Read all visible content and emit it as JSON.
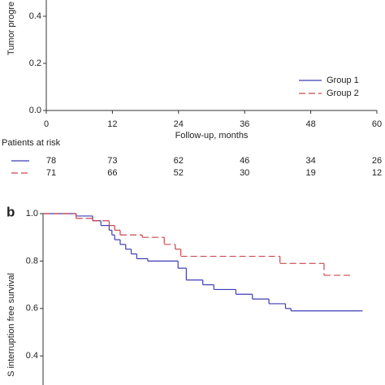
{
  "chart_data": [
    {
      "type": "line",
      "y_label": "Tumor progre",
      "x_label": "Follow-up, months",
      "xlim": [
        0,
        60
      ],
      "xticks": [
        0,
        12,
        24,
        36,
        48,
        60
      ],
      "ylim": [
        0,
        1
      ],
      "yticks": [
        {
          "value": 0,
          "label": "0.0"
        },
        {
          "value": 0.2,
          "label": "0.2"
        },
        {
          "value": 0.4,
          "label": "0.4"
        }
      ],
      "legend": "lower right",
      "at_risk_title": "Patients at risk",
      "series": [
        {
          "name": "Group 1",
          "color": "#3c3cb4",
          "dash": false,
          "x": [],
          "values": [],
          "at_risk": [
            78,
            73,
            62,
            46,
            34,
            26
          ]
        },
        {
          "name": "Group 2",
          "color": "#c8474e",
          "dash": true,
          "x": [],
          "values": [],
          "at_risk": [
            71,
            66,
            52,
            30,
            19,
            12
          ]
        }
      ]
    },
    {
      "type": "step",
      "panel": "b",
      "y_label": "S interruption free survival",
      "xlim": [
        0,
        60
      ],
      "ylim": [
        0,
        1
      ],
      "yticks": [
        {
          "value": 0.4,
          "label": "0.4"
        },
        {
          "value": 0.6,
          "label": "0.6"
        },
        {
          "value": 0.8,
          "label": "0.8"
        },
        {
          "value": 1,
          "label": "1.0"
        }
      ],
      "series": [
        {
          "name": "Group 1",
          "color": "#3c3cb4",
          "dash": false,
          "x": [
            0,
            6,
            9,
            10.5,
            12,
            12.5,
            13,
            14,
            15,
            16,
            17,
            19,
            24.5,
            26,
            29,
            31,
            35,
            38,
            41,
            44,
            45,
            58
          ],
          "values": [
            1.0,
            0.99,
            0.97,
            0.95,
            0.93,
            0.91,
            0.89,
            0.87,
            0.85,
            0.83,
            0.81,
            0.8,
            0.77,
            0.72,
            0.7,
            0.68,
            0.66,
            0.64,
            0.62,
            0.6,
            0.59,
            0.59
          ]
        },
        {
          "name": "Group 2",
          "color": "#c8474e",
          "dash": true,
          "x": [
            0,
            6,
            9,
            12,
            13,
            14,
            18,
            22,
            24,
            25,
            43,
            51,
            56
          ],
          "values": [
            1.0,
            0.98,
            0.97,
            0.95,
            0.93,
            0.91,
            0.9,
            0.87,
            0.85,
            0.82,
            0.79,
            0.74,
            0.74
          ]
        }
      ]
    }
  ]
}
